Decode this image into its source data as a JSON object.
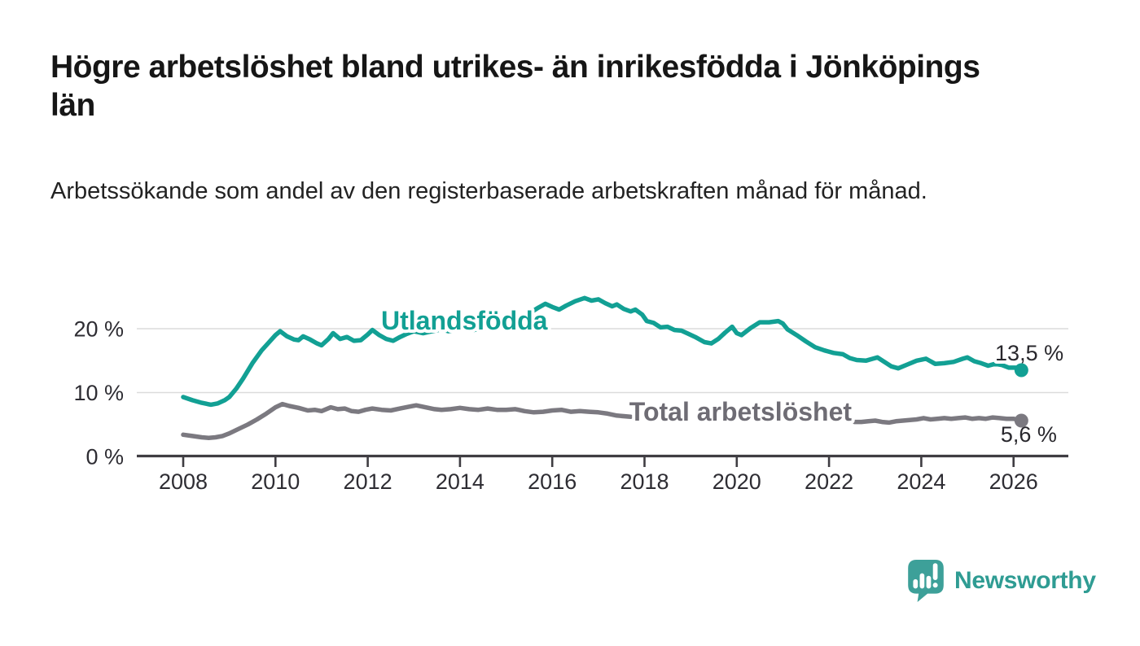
{
  "header": {
    "title": "Högre arbetslöshet bland utrikes- än inrikesfödda i Jönköpings län",
    "subtitle": "Arbetssökande som andel av den registerbaserade arbetskraften månad för månad."
  },
  "footer": {
    "brand": "Newsworthy",
    "logo_icon": "bar-chart-speech-bubble-icon"
  },
  "colors": {
    "teal": "#12a094",
    "gray": "#7b7980",
    "gray_label": "#6e6c74",
    "grid": "#dcdcdc",
    "axis": "#3f3d42",
    "tick_text": "#2e2d33",
    "value_text": "#28272c",
    "logo_bubble": "#3da099"
  },
  "chart_data": {
    "type": "line",
    "title": "",
    "xlabel": "",
    "ylabel": "",
    "x_range": [
      2007.9,
      2027.1
    ],
    "y_range": [
      0,
      26
    ],
    "grid": "horizontal-only",
    "legend_position": "inline-labels-on-lines",
    "x_axis": {
      "ticks": [
        2008,
        2010,
        2012,
        2014,
        2016,
        2018,
        2020,
        2022,
        2024,
        2026
      ]
    },
    "y_axis": {
      "ticks": [
        {
          "v": 0,
          "label": "0 %"
        },
        {
          "v": 10,
          "label": "10 %"
        },
        {
          "v": 20,
          "label": "20 %"
        }
      ]
    },
    "series": [
      {
        "name": "Utlandsfödda",
        "color": "#12a094",
        "end_value_label": "13,5 %",
        "end_point": [
          2026.17,
          13.5
        ],
        "points": [
          [
            2008.0,
            9.3
          ],
          [
            2008.2,
            8.8
          ],
          [
            2008.4,
            8.4
          ],
          [
            2008.6,
            8.1
          ],
          [
            2008.75,
            8.3
          ],
          [
            2008.9,
            8.8
          ],
          [
            2009.0,
            9.3
          ],
          [
            2009.15,
            10.6
          ],
          [
            2009.3,
            12.2
          ],
          [
            2009.5,
            14.6
          ],
          [
            2009.7,
            16.6
          ],
          [
            2009.85,
            17.8
          ],
          [
            2010.0,
            19.0
          ],
          [
            2010.1,
            19.6
          ],
          [
            2010.25,
            18.8
          ],
          [
            2010.4,
            18.3
          ],
          [
            2010.5,
            18.2
          ],
          [
            2010.6,
            18.8
          ],
          [
            2010.75,
            18.3
          ],
          [
            2010.9,
            17.7
          ],
          [
            2011.0,
            17.4
          ],
          [
            2011.15,
            18.4
          ],
          [
            2011.25,
            19.3
          ],
          [
            2011.4,
            18.4
          ],
          [
            2011.55,
            18.7
          ],
          [
            2011.7,
            18.1
          ],
          [
            2011.85,
            18.2
          ],
          [
            2012.0,
            19.1
          ],
          [
            2012.1,
            19.8
          ],
          [
            2012.25,
            19.0
          ],
          [
            2012.4,
            18.4
          ],
          [
            2012.55,
            18.1
          ],
          [
            2012.7,
            18.7
          ],
          [
            2012.85,
            19.2
          ],
          [
            2013.0,
            19.6
          ],
          [
            2013.2,
            19.3
          ],
          [
            2013.4,
            19.6
          ],
          [
            2013.6,
            19.9
          ],
          [
            2013.75,
            19.6
          ],
          [
            2013.9,
            19.8
          ],
          [
            2014.1,
            20.1
          ],
          [
            2014.3,
            19.8
          ],
          [
            2014.5,
            20.1
          ],
          [
            2014.7,
            20.2
          ],
          [
            2014.9,
            20.6
          ],
          [
            2015.1,
            21.1
          ],
          [
            2015.3,
            21.7
          ],
          [
            2015.5,
            22.4
          ],
          [
            2015.7,
            23.3
          ],
          [
            2015.85,
            23.9
          ],
          [
            2016.0,
            23.4
          ],
          [
            2016.15,
            23.0
          ],
          [
            2016.3,
            23.6
          ],
          [
            2016.5,
            24.3
          ],
          [
            2016.7,
            24.8
          ],
          [
            2016.85,
            24.4
          ],
          [
            2017.0,
            24.6
          ],
          [
            2017.15,
            24.0
          ],
          [
            2017.3,
            23.5
          ],
          [
            2017.4,
            23.8
          ],
          [
            2017.55,
            23.1
          ],
          [
            2017.7,
            22.7
          ],
          [
            2017.8,
            23.0
          ],
          [
            2017.95,
            22.2
          ],
          [
            2018.05,
            21.2
          ],
          [
            2018.2,
            20.9
          ],
          [
            2018.35,
            20.2
          ],
          [
            2018.5,
            20.3
          ],
          [
            2018.65,
            19.8
          ],
          [
            2018.8,
            19.7
          ],
          [
            2018.95,
            19.2
          ],
          [
            2019.1,
            18.7
          ],
          [
            2019.3,
            17.9
          ],
          [
            2019.45,
            17.7
          ],
          [
            2019.6,
            18.4
          ],
          [
            2019.75,
            19.4
          ],
          [
            2019.9,
            20.3
          ],
          [
            2020.0,
            19.3
          ],
          [
            2020.1,
            19.0
          ],
          [
            2020.3,
            20.1
          ],
          [
            2020.5,
            21.0
          ],
          [
            2020.7,
            21.0
          ],
          [
            2020.9,
            21.2
          ],
          [
            2021.0,
            20.8
          ],
          [
            2021.1,
            19.9
          ],
          [
            2021.3,
            19.0
          ],
          [
            2021.5,
            18.0
          ],
          [
            2021.7,
            17.1
          ],
          [
            2021.9,
            16.6
          ],
          [
            2022.1,
            16.2
          ],
          [
            2022.3,
            16.0
          ],
          [
            2022.45,
            15.4
          ],
          [
            2022.6,
            15.1
          ],
          [
            2022.8,
            15.0
          ],
          [
            2022.95,
            15.3
          ],
          [
            2023.05,
            15.5
          ],
          [
            2023.2,
            14.8
          ],
          [
            2023.35,
            14.1
          ],
          [
            2023.5,
            13.8
          ],
          [
            2023.7,
            14.4
          ],
          [
            2023.9,
            15.0
          ],
          [
            2024.1,
            15.3
          ],
          [
            2024.3,
            14.5
          ],
          [
            2024.5,
            14.6
          ],
          [
            2024.7,
            14.8
          ],
          [
            2024.9,
            15.3
          ],
          [
            2025.0,
            15.5
          ],
          [
            2025.15,
            14.9
          ],
          [
            2025.3,
            14.6
          ],
          [
            2025.45,
            14.2
          ],
          [
            2025.6,
            14.5
          ],
          [
            2025.75,
            14.3
          ],
          [
            2025.9,
            13.9
          ],
          [
            2026.05,
            13.9
          ],
          [
            2026.17,
            13.5
          ]
        ]
      },
      {
        "name": "Total arbetslöshet",
        "color": "#7b7980",
        "end_value_label": "5,6 %",
        "end_point": [
          2026.17,
          5.6
        ],
        "points": [
          [
            2008.0,
            3.4
          ],
          [
            2008.2,
            3.2
          ],
          [
            2008.4,
            3.0
          ],
          [
            2008.55,
            2.9
          ],
          [
            2008.7,
            3.0
          ],
          [
            2008.85,
            3.2
          ],
          [
            2009.0,
            3.6
          ],
          [
            2009.2,
            4.3
          ],
          [
            2009.4,
            5.0
          ],
          [
            2009.6,
            5.8
          ],
          [
            2009.8,
            6.7
          ],
          [
            2010.0,
            7.7
          ],
          [
            2010.15,
            8.2
          ],
          [
            2010.3,
            7.9
          ],
          [
            2010.5,
            7.6
          ],
          [
            2010.7,
            7.2
          ],
          [
            2010.85,
            7.3
          ],
          [
            2011.0,
            7.1
          ],
          [
            2011.2,
            7.7
          ],
          [
            2011.35,
            7.4
          ],
          [
            2011.5,
            7.5
          ],
          [
            2011.65,
            7.1
          ],
          [
            2011.8,
            7.0
          ],
          [
            2011.95,
            7.3
          ],
          [
            2012.1,
            7.5
          ],
          [
            2012.3,
            7.3
          ],
          [
            2012.5,
            7.2
          ],
          [
            2012.7,
            7.5
          ],
          [
            2012.9,
            7.8
          ],
          [
            2013.05,
            8.0
          ],
          [
            2013.25,
            7.7
          ],
          [
            2013.45,
            7.4
          ],
          [
            2013.6,
            7.3
          ],
          [
            2013.8,
            7.4
          ],
          [
            2014.0,
            7.6
          ],
          [
            2014.2,
            7.4
          ],
          [
            2014.4,
            7.3
          ],
          [
            2014.6,
            7.5
          ],
          [
            2014.8,
            7.3
          ],
          [
            2015.0,
            7.3
          ],
          [
            2015.2,
            7.4
          ],
          [
            2015.4,
            7.1
          ],
          [
            2015.6,
            6.9
          ],
          [
            2015.8,
            7.0
          ],
          [
            2016.0,
            7.2
          ],
          [
            2016.2,
            7.3
          ],
          [
            2016.4,
            7.0
          ],
          [
            2016.6,
            7.1
          ],
          [
            2016.8,
            7.0
          ],
          [
            2017.0,
            6.9
          ],
          [
            2017.2,
            6.7
          ],
          [
            2017.4,
            6.4
          ],
          [
            2017.7,
            6.2
          ],
          [
            2018.0,
            null
          ],
          [
            2022.55,
            5.4
          ],
          [
            2022.7,
            5.4
          ],
          [
            2022.85,
            5.5
          ],
          [
            2023.0,
            5.6
          ],
          [
            2023.15,
            5.4
          ],
          [
            2023.3,
            5.3
          ],
          [
            2023.45,
            5.5
          ],
          [
            2023.6,
            5.6
          ],
          [
            2023.75,
            5.7
          ],
          [
            2023.9,
            5.8
          ],
          [
            2024.05,
            6.0
          ],
          [
            2024.2,
            5.8
          ],
          [
            2024.35,
            5.9
          ],
          [
            2024.5,
            6.0
          ],
          [
            2024.65,
            5.9
          ],
          [
            2024.8,
            6.0
          ],
          [
            2024.95,
            6.1
          ],
          [
            2025.1,
            5.9
          ],
          [
            2025.25,
            6.0
          ],
          [
            2025.4,
            5.9
          ],
          [
            2025.55,
            6.1
          ],
          [
            2025.7,
            6.0
          ],
          [
            2025.85,
            5.9
          ],
          [
            2026.0,
            5.9
          ],
          [
            2026.17,
            5.6
          ]
        ]
      }
    ],
    "annotations": [
      {
        "text": "Utlandsfödda",
        "x": 2012.29,
        "y": 19.85,
        "color": "#12a094",
        "size": 32,
        "weight": "bold",
        "halo": true
      },
      {
        "text": "Total arbetslöshet",
        "x": 2017.67,
        "y": 5.6,
        "color": "#6e6c74",
        "size": 32,
        "weight": "bold",
        "halo": true
      },
      {
        "text": "13,5 %",
        "x": 2025.6,
        "y": 15.03,
        "color": "#28272c",
        "size": 27,
        "weight": "normal",
        "halo": true
      },
      {
        "text": "5,6 %",
        "x": 2025.72,
        "y": 2.29,
        "color": "#28272c",
        "size": 27,
        "weight": "normal",
        "halo": true
      }
    ]
  }
}
